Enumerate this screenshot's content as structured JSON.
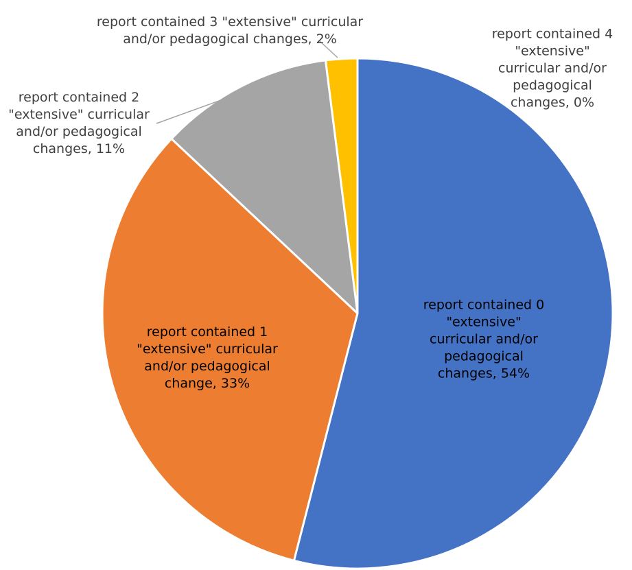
{
  "chart_data": {
    "type": "pie",
    "categories": [
      "report contained 0 \"extensive\" curricular and/or pedagogical changes",
      "report contained 1 \"extensive\" curricular and/or pedagogical change",
      "report contained 2 \"extensive\" curricular and/or pedagogical changes",
      "report contained 3 \"extensive\" curricular and/or pedagogical changes",
      "report contained 4 \"extensive\" curricular and/or pedagogical changes"
    ],
    "values": [
      54,
      33,
      11,
      2,
      0
    ],
    "value_labels": [
      "54%",
      "33%",
      "11%",
      "2%",
      "0%"
    ],
    "colors": [
      "#4472c4",
      "#ed7d31",
      "#a5a5a5",
      "#ffc000",
      "#5b9bd5"
    ]
  }
}
